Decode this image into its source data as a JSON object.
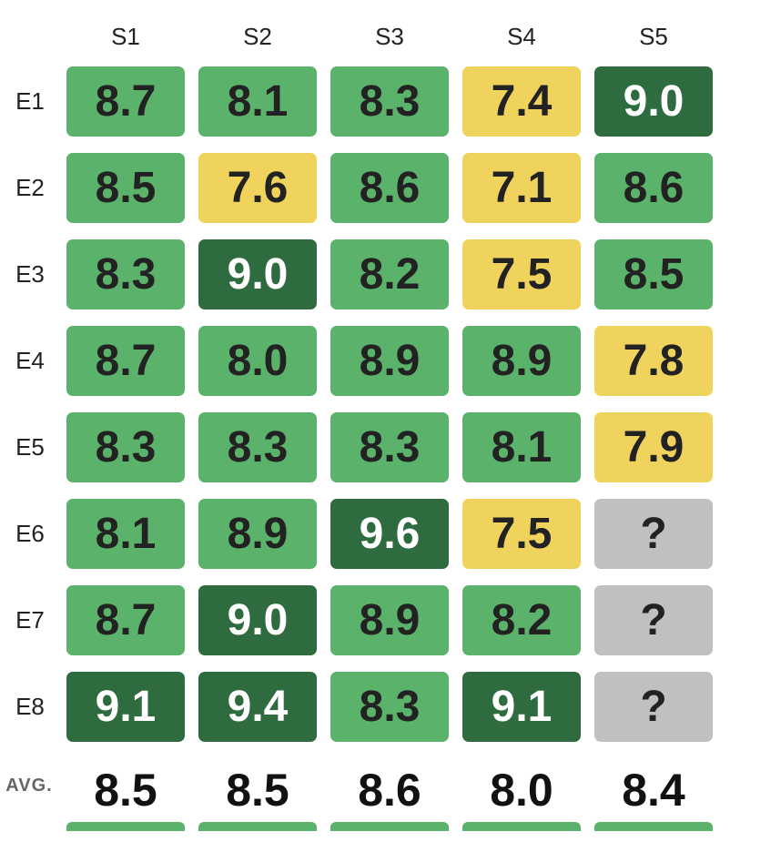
{
  "table": {
    "columns": [
      "S1",
      "S2",
      "S3",
      "S4",
      "S5"
    ],
    "rows": [
      {
        "label": "E1",
        "cells": [
          {
            "text": "8.7",
            "color": "#5bb36b"
          },
          {
            "text": "8.1",
            "color": "#5bb36b"
          },
          {
            "text": "8.3",
            "color": "#5bb36b"
          },
          {
            "text": "7.4",
            "color": "#f0d35c"
          },
          {
            "text": "9.0",
            "color": "#2e6b3f"
          }
        ]
      },
      {
        "label": "E2",
        "cells": [
          {
            "text": "8.5",
            "color": "#5bb36b"
          },
          {
            "text": "7.6",
            "color": "#f0d35c"
          },
          {
            "text": "8.6",
            "color": "#5bb36b"
          },
          {
            "text": "7.1",
            "color": "#f0d35c"
          },
          {
            "text": "8.6",
            "color": "#5bb36b"
          }
        ]
      },
      {
        "label": "E3",
        "cells": [
          {
            "text": "8.3",
            "color": "#5bb36b"
          },
          {
            "text": "9.0",
            "color": "#2e6b3f"
          },
          {
            "text": "8.2",
            "color": "#5bb36b"
          },
          {
            "text": "7.5",
            "color": "#f0d35c"
          },
          {
            "text": "8.5",
            "color": "#5bb36b"
          }
        ]
      },
      {
        "label": "E4",
        "cells": [
          {
            "text": "8.7",
            "color": "#5bb36b"
          },
          {
            "text": "8.0",
            "color": "#5bb36b"
          },
          {
            "text": "8.9",
            "color": "#5bb36b"
          },
          {
            "text": "8.9",
            "color": "#5bb36b"
          },
          {
            "text": "7.8",
            "color": "#f0d35c"
          }
        ]
      },
      {
        "label": "E5",
        "cells": [
          {
            "text": "8.3",
            "color": "#5bb36b"
          },
          {
            "text": "8.3",
            "color": "#5bb36b"
          },
          {
            "text": "8.3",
            "color": "#5bb36b"
          },
          {
            "text": "8.1",
            "color": "#5bb36b"
          },
          {
            "text": "7.9",
            "color": "#f0d35c"
          }
        ]
      },
      {
        "label": "E6",
        "cells": [
          {
            "text": "8.1",
            "color": "#5bb36b"
          },
          {
            "text": "8.9",
            "color": "#5bb36b"
          },
          {
            "text": "9.6",
            "color": "#2e6b3f"
          },
          {
            "text": "7.5",
            "color": "#f0d35c"
          },
          {
            "text": "?",
            "color": "#c0c0c0"
          }
        ]
      },
      {
        "label": "E7",
        "cells": [
          {
            "text": "8.7",
            "color": "#5bb36b"
          },
          {
            "text": "9.0",
            "color": "#2e6b3f"
          },
          {
            "text": "8.9",
            "color": "#5bb36b"
          },
          {
            "text": "8.2",
            "color": "#5bb36b"
          },
          {
            "text": "?",
            "color": "#c0c0c0"
          }
        ]
      },
      {
        "label": "E8",
        "cells": [
          {
            "text": "9.1",
            "color": "#2e6b3f"
          },
          {
            "text": "9.4",
            "color": "#2e6b3f"
          },
          {
            "text": "8.3",
            "color": "#5bb36b"
          },
          {
            "text": "9.1",
            "color": "#2e6b3f"
          },
          {
            "text": "?",
            "color": "#c0c0c0"
          }
        ]
      }
    ],
    "average": {
      "label": "AVG.",
      "values": [
        "8.5",
        "8.5",
        "8.6",
        "8.0",
        "8.4"
      ]
    }
  }
}
